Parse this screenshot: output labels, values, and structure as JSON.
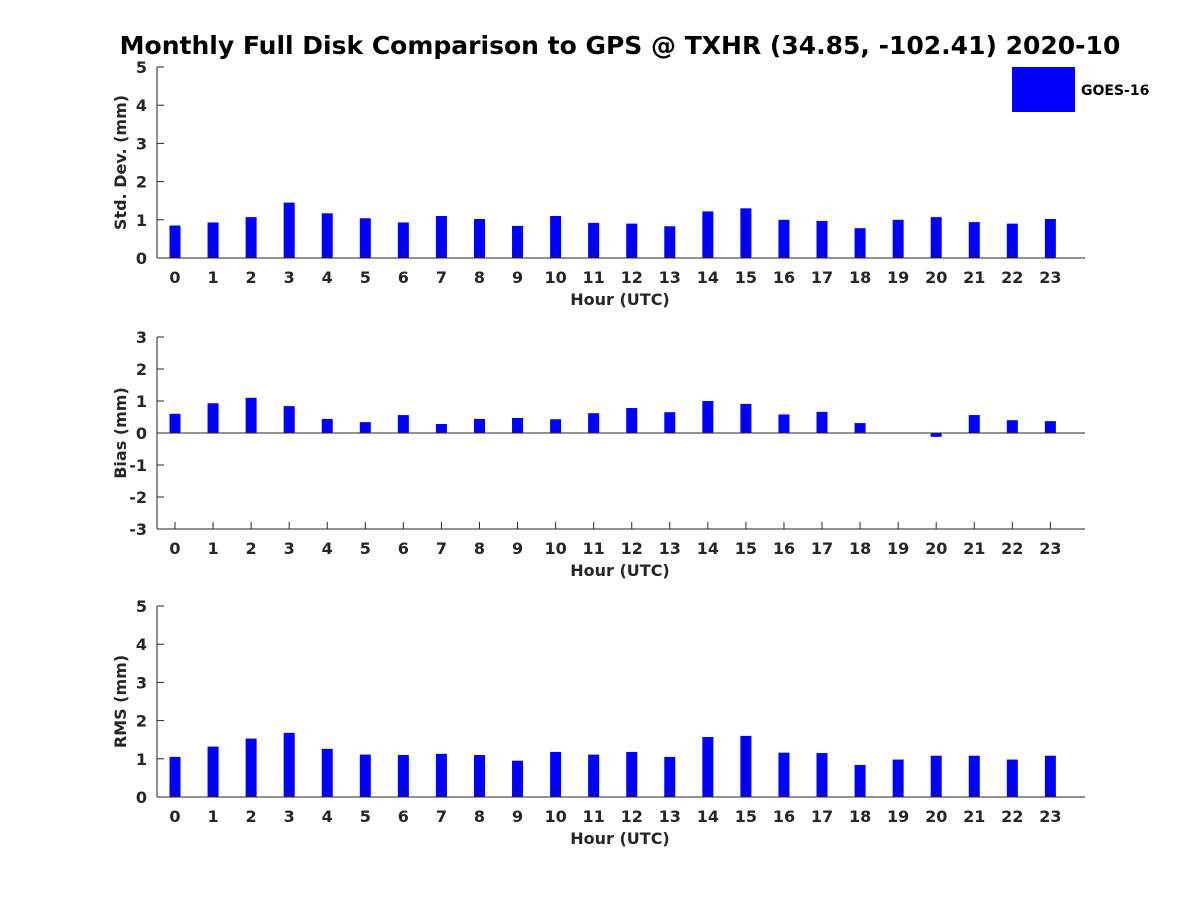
{
  "title": "Monthly Full Disk Comparison to GPS @ TXHR (34.85, -102.41) 2020-10",
  "colors": {
    "bar": "#0000ff",
    "axis": "#262626",
    "background": "#ffffff"
  },
  "legend": {
    "label": "GOES-16",
    "position": "top-right"
  },
  "chart_data": [
    {
      "type": "bar",
      "categories": [
        "0",
        "1",
        "2",
        "3",
        "4",
        "5",
        "6",
        "7",
        "8",
        "9",
        "10",
        "11",
        "12",
        "13",
        "14",
        "15",
        "16",
        "17",
        "18",
        "19",
        "20",
        "21",
        "22",
        "23"
      ],
      "series": [
        {
          "name": "GOES-16",
          "values": [
            0.85,
            0.93,
            1.07,
            1.45,
            1.17,
            1.04,
            0.93,
            1.1,
            1.02,
            0.84,
            1.1,
            0.92,
            0.9,
            0.83,
            1.22,
            1.3,
            1.0,
            0.97,
            0.78,
            1.0,
            1.07,
            0.94,
            0.9,
            1.02
          ]
        }
      ],
      "xlabel": "Hour (UTC)",
      "ylabel": "Std. Dev. (mm)",
      "ylim": [
        0,
        5
      ],
      "yticks": [
        "0",
        "1",
        "2",
        "3",
        "4",
        "5"
      ],
      "grid": false
    },
    {
      "type": "bar",
      "categories": [
        "0",
        "1",
        "2",
        "3",
        "4",
        "5",
        "6",
        "7",
        "8",
        "9",
        "10",
        "11",
        "12",
        "13",
        "14",
        "15",
        "16",
        "17",
        "18",
        "19",
        "20",
        "21",
        "22",
        "23"
      ],
      "series": [
        {
          "name": "GOES-16",
          "values": [
            0.6,
            0.93,
            1.1,
            0.84,
            0.44,
            0.34,
            0.56,
            0.28,
            0.44,
            0.47,
            0.43,
            0.62,
            0.78,
            0.65,
            1.0,
            0.91,
            0.58,
            0.66,
            0.31,
            0.0,
            -0.12,
            0.56,
            0.4,
            0.37
          ]
        }
      ],
      "xlabel": "Hour (UTC)",
      "ylabel": "Bias (mm)",
      "ylim": [
        -3,
        3
      ],
      "yticks": [
        "-3",
        "-2",
        "-1",
        "0",
        "1",
        "2",
        "3"
      ],
      "grid": false
    },
    {
      "type": "bar",
      "categories": [
        "0",
        "1",
        "2",
        "3",
        "4",
        "5",
        "6",
        "7",
        "8",
        "9",
        "10",
        "11",
        "12",
        "13",
        "14",
        "15",
        "16",
        "17",
        "18",
        "19",
        "20",
        "21",
        "22",
        "23"
      ],
      "series": [
        {
          "name": "GOES-16",
          "values": [
            1.05,
            1.32,
            1.53,
            1.68,
            1.26,
            1.11,
            1.1,
            1.13,
            1.1,
            0.95,
            1.18,
            1.11,
            1.18,
            1.05,
            1.57,
            1.6,
            1.16,
            1.15,
            0.84,
            0.98,
            1.08,
            1.08,
            0.98,
            1.08
          ]
        }
      ],
      "xlabel": "Hour (UTC)",
      "ylabel": "RMS (mm)",
      "ylim": [
        0,
        5
      ],
      "yticks": [
        "0",
        "1",
        "2",
        "3",
        "4",
        "5"
      ],
      "grid": false
    }
  ]
}
